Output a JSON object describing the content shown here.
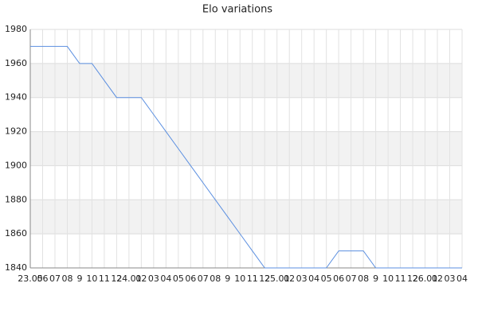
{
  "chart_data": {
    "type": "line",
    "title": "Elo variations",
    "categories": [
      "23.05",
      "06",
      "07",
      "08",
      "9",
      "10",
      "11",
      "12",
      "24.01",
      "02",
      "03",
      "04",
      "05",
      "06",
      "07",
      "08",
      "9",
      "10",
      "11",
      "12",
      "25.01",
      "02",
      "03",
      "04",
      "05",
      "06",
      "07",
      "08",
      "9",
      "10",
      "11",
      "12",
      "26.01",
      "02",
      "03",
      "04"
    ],
    "series": [
      {
        "name": "Elo",
        "color": "#5b8fe0",
        "values": [
          1970,
          1970,
          1970,
          1970,
          1960,
          1960,
          1950,
          1940,
          1940,
          1940,
          1930,
          1920,
          1910,
          1900,
          1890,
          1880,
          1870,
          1860,
          1850,
          1840,
          1840,
          1840,
          1840,
          1840,
          1840,
          1850,
          1850,
          1850,
          1840,
          1840,
          1840,
          1840,
          1840,
          1840,
          1840,
          1840
        ]
      }
    ],
    "ylim": [
      1840,
      1980
    ],
    "yticks": [
      1840,
      1860,
      1880,
      1900,
      1920,
      1940,
      1960,
      1980
    ],
    "grid": true
  }
}
